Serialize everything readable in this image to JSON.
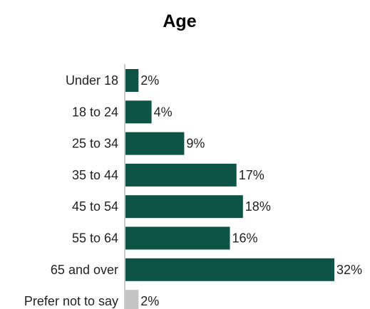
{
  "chart_data": {
    "type": "bar",
    "orientation": "horizontal",
    "title": "Age",
    "xlabel": "",
    "ylabel": "",
    "xlim": [
      0,
      32
    ],
    "grid": false,
    "legend": "none",
    "categories": [
      "Under 18",
      "18 to 24",
      "25 to 34",
      "35 to 44",
      "45 to 54",
      "55 to 64",
      "65 and over",
      "Prefer not to say"
    ],
    "values": [
      2,
      4,
      9,
      17,
      18,
      16,
      32,
      2
    ],
    "value_labels": [
      "2%",
      "4%",
      "9%",
      "17%",
      "18%",
      "16%",
      "32%",
      "2%"
    ],
    "colors": [
      "#0d5446",
      "#0d5446",
      "#0d5446",
      "#0d5446",
      "#0d5446",
      "#0d5446",
      "#0d5446",
      "#c4c4c4"
    ],
    "axis_color": "#b8b8b8"
  }
}
